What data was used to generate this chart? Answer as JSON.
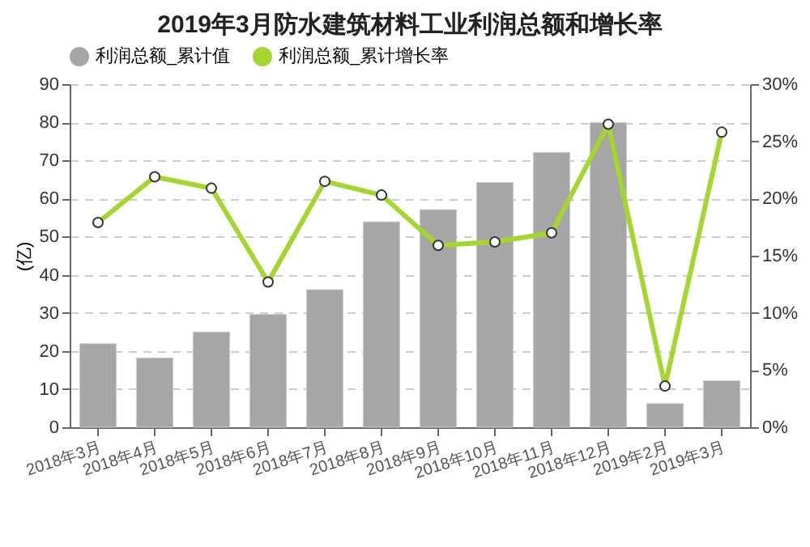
{
  "chart_data": {
    "type": "bar",
    "title": "2019年3月防水建筑材料工业利润总额和增长率",
    "ylabel": "(亿)",
    "categories": [
      "2018年3月",
      "2018年4月",
      "2018年5月",
      "2018年6月",
      "2018年7月",
      "2018年8月",
      "2018年9月",
      "2018年10月",
      "2018年11月",
      "2018年12月",
      "2019年2月",
      "2019年3月"
    ],
    "series": [
      {
        "name": "利润总额_累计值",
        "color": "#a6a6a6",
        "values": [
          21.9,
          18.2,
          25.0,
          29.6,
          36.1,
          53.9,
          57.1,
          64.2,
          72.1,
          79.9,
          6.2,
          12.2
        ]
      },
      {
        "name": "利润总额_累计增长率",
        "type": "line",
        "axis": "y2",
        "color": "#a5d62f",
        "marker": "circle",
        "values": [
          17.9,
          21.9,
          20.9,
          12.7,
          21.5,
          20.3,
          15.9,
          16.2,
          17.0,
          26.5,
          3.6,
          25.8
        ]
      }
    ],
    "ylim": [
      0,
      90
    ],
    "yticks": [
      0,
      10,
      20,
      30,
      40,
      50,
      60,
      70,
      80,
      90
    ],
    "y2lim": [
      0,
      30
    ],
    "y2ticks": [
      {
        "value": 0,
        "label": "0%"
      },
      {
        "value": 5,
        "label": "5%"
      },
      {
        "value": 10,
        "label": "10%"
      },
      {
        "value": 15,
        "label": "15%"
      },
      {
        "value": 20,
        "label": "20%"
      },
      {
        "value": 25,
        "label": "25%"
      },
      {
        "value": 30,
        "label": "30%"
      }
    ],
    "grid": "y",
    "legend": "top"
  }
}
